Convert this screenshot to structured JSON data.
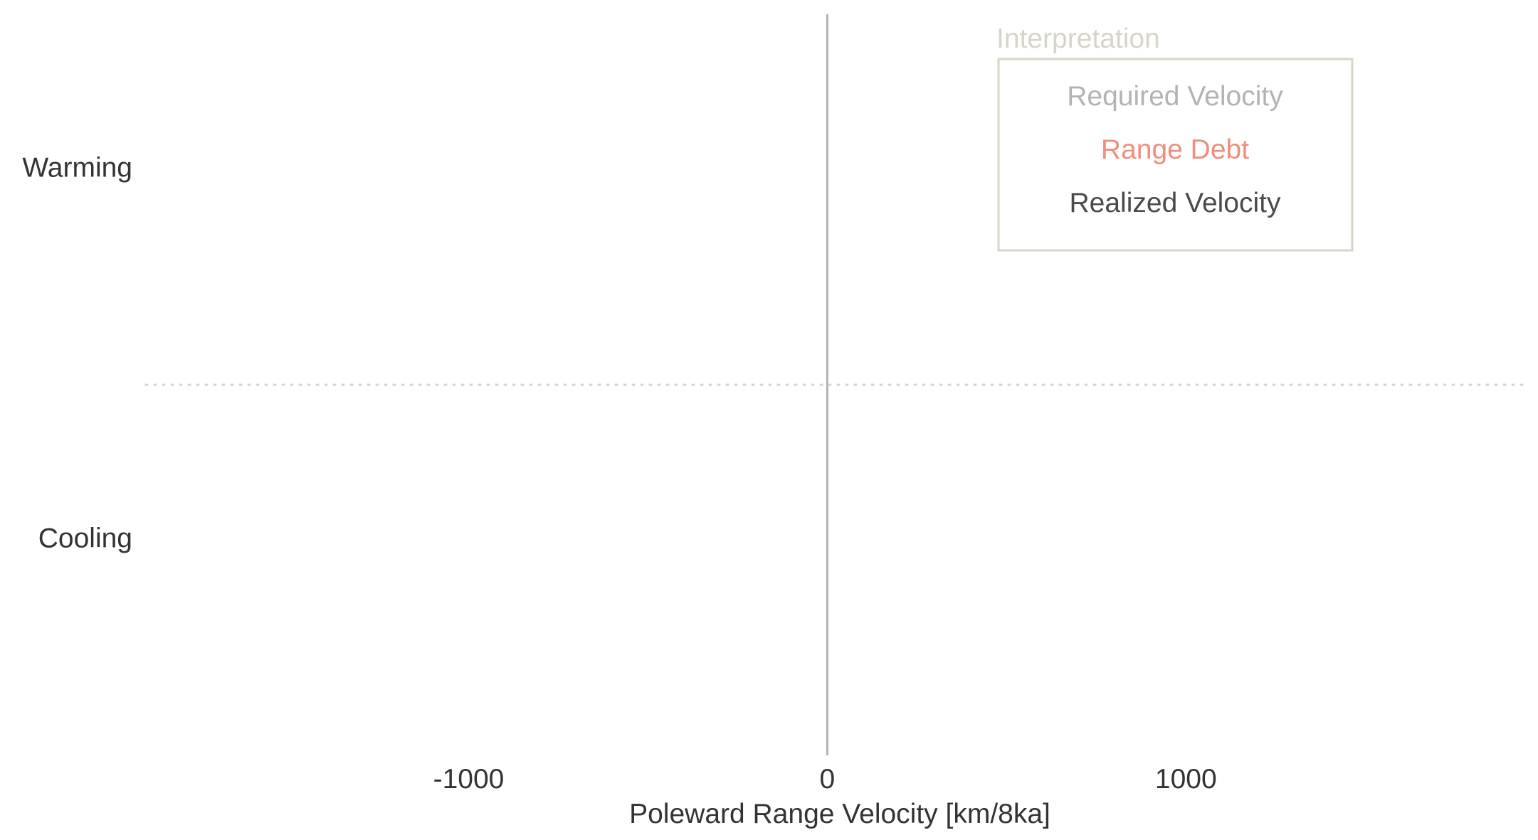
{
  "chart_data": {
    "type": "bar",
    "orientation": "horizontal",
    "categories": [
      "Warming",
      "Cooling"
    ],
    "xlabel": "Poleward Range Velocity [km/8ka]",
    "ylabel": "",
    "xlim": [
      -1900,
      1950
    ],
    "xticks": [
      -1000,
      0,
      1000
    ],
    "xtick_labels": [
      "-1000",
      "0",
      "1000"
    ],
    "grid": false,
    "zero_line": true,
    "category_separator": "dotted",
    "series": [],
    "legend": {
      "title": "Interpretation",
      "placement": "top-right",
      "entries": [
        {
          "label": "Required Velocity",
          "color": "#b3b3b3"
        },
        {
          "label": "Range Debt",
          "color": "#ef8f7b"
        },
        {
          "label": "Realized Velocity",
          "color": "#4a4a4a"
        }
      ]
    },
    "colors": {
      "zero_line": "#b3b3b3",
      "separator": "#d4d4d4",
      "legend_frame": "#d9d4c8",
      "legend_title": "#d9d4c8",
      "text": "#333333"
    }
  }
}
